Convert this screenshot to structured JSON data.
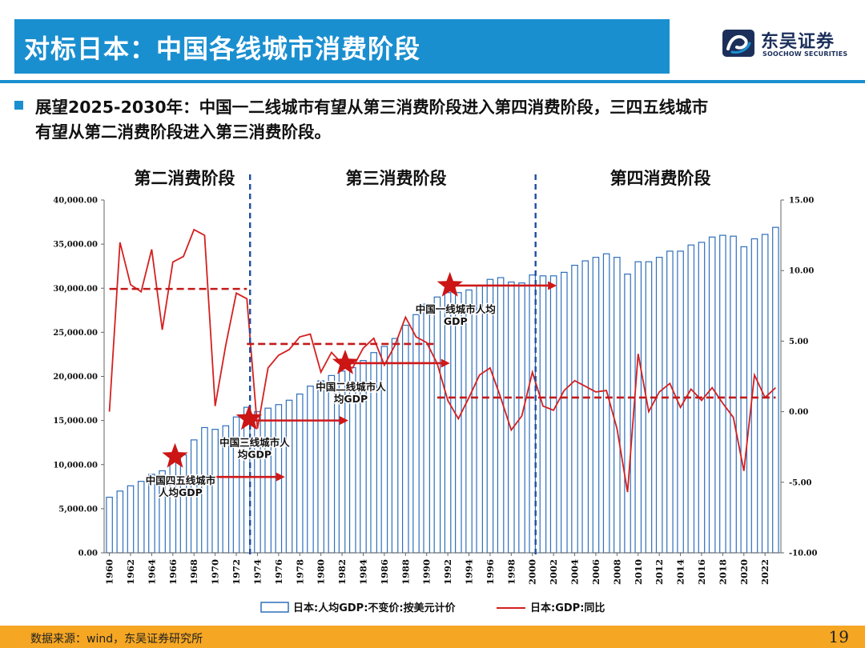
{
  "slide": {
    "title": "对标日本：中国各线城市消费阶段",
    "bullet_line1": "展望2025-2030年：中国一二线城市有望从第三消费阶段进入第四消费阶段，三四五线城市",
    "bullet_line2": "有望从第二消费阶段进入第三消费阶段。",
    "source": "数据来源：wind，东吴证券研究所",
    "page_number": "19",
    "logo": {
      "name_cn": "东吴证券",
      "name_en": "SOOCHOW SECURITIES"
    },
    "colors": {
      "brand_blue": "#1a8fd0",
      "footer_orange": "#f5a623",
      "logo_navy": "#1b2f5a",
      "bar_blue": "#2e6fba",
      "line_red": "#d42020",
      "phase_divider": "#1f4fa0"
    }
  },
  "chart_data": {
    "type": "bar",
    "categories": [
      1960,
      1961,
      1962,
      1963,
      1964,
      1965,
      1966,
      1967,
      1968,
      1969,
      1970,
      1971,
      1972,
      1973,
      1974,
      1975,
      1976,
      1977,
      1978,
      1979,
      1980,
      1981,
      1982,
      1983,
      1984,
      1985,
      1986,
      1987,
      1988,
      1989,
      1990,
      1991,
      1992,
      1993,
      1994,
      1995,
      1996,
      1997,
      1998,
      1999,
      2000,
      2001,
      2002,
      2003,
      2004,
      2005,
      2006,
      2007,
      2008,
      2009,
      2010,
      2011,
      2012,
      2013,
      2014,
      2015,
      2016,
      2017,
      2018,
      2019,
      2020,
      2021,
      2022,
      2023
    ],
    "x_tick_labels": [
      "1960",
      "1962",
      "1964",
      "1966",
      "1968",
      "1970",
      "1972",
      "1974",
      "1976",
      "1978",
      "1980",
      "1982",
      "1984",
      "1986",
      "1988",
      "1990",
      "1992",
      "1994",
      "1996",
      "1998",
      "2000",
      "2002",
      "2004",
      "2006",
      "2008",
      "2010",
      "2012",
      "2014",
      "2016",
      "2018",
      "2020",
      "2022"
    ],
    "series": [
      {
        "name": "日本:人均GDP:不变价:按美元计价",
        "type": "bar",
        "axis": "left",
        "values": [
          6300,
          7000,
          7600,
          8100,
          8900,
          9300,
          10300,
          11100,
          12800,
          14200,
          14000,
          14400,
          15400,
          16500,
          16000,
          16400,
          16800,
          17300,
          18000,
          18900,
          19500,
          20100,
          20600,
          21000,
          21800,
          22700,
          23400,
          24300,
          25800,
          27000,
          28200,
          29000,
          29500,
          29500,
          29800,
          30300,
          31000,
          31200,
          30700,
          30600,
          31500,
          31400,
          31400,
          31800,
          32600,
          33100,
          33500,
          33900,
          33500,
          31600,
          33000,
          33000,
          33500,
          34200,
          34200,
          34900,
          35200,
          35800,
          36000,
          35900,
          34700,
          35600,
          36100,
          36900
        ]
      },
      {
        "name": "日本:GDP:同比",
        "type": "line",
        "axis": "right",
        "values": [
          0,
          12,
          9,
          8.5,
          11.5,
          5.8,
          10.6,
          11,
          12.9,
          12.5,
          0.4,
          4.7,
          8.4,
          8,
          -1.2,
          3.1,
          4,
          4.4,
          5.3,
          5.5,
          2.8,
          4.2,
          3.4,
          3.1,
          4.5,
          5.2,
          3.3,
          4.7,
          6.7,
          5.3,
          4.9,
          3.4,
          0.8,
          -0.5,
          1,
          2.6,
          3.1,
          1,
          -1.3,
          -0.3,
          2.8,
          0.4,
          0.1,
          1.5,
          2.2,
          1.8,
          1.4,
          1.5,
          -1.2,
          -5.7,
          4.1,
          0,
          1.4,
          2,
          0.3,
          1.6,
          0.8,
          1.7,
          0.6,
          -0.4,
          -4.2,
          2.6,
          1,
          1.7
        ]
      }
    ],
    "ylim_left": [
      0,
      40000
    ],
    "ylim_right": [
      -10,
      15
    ],
    "y_left_ticks": [
      "0.00",
      "5,000.00",
      "10,000.00",
      "15,000.00",
      "20,000.00",
      "25,000.00",
      "30,000.00",
      "35,000.00",
      "40,000.00"
    ],
    "y_right_ticks": [
      "-10.00",
      "-5.00",
      "0.00",
      "5.00",
      "10.00",
      "15.00"
    ],
    "phases": [
      {
        "label": "第二消费阶段",
        "from": 1960,
        "to": 1973
      },
      {
        "label": "第三消费阶段",
        "from": 1973,
        "to": 2000
      },
      {
        "label": "第四消费阶段",
        "from": 2000,
        "to": 2023
      }
    ],
    "phase_dividers": [
      1973,
      2000
    ],
    "phase_averages": [
      {
        "from": 1960,
        "to": 1973,
        "value": 8.7
      },
      {
        "from": 1973,
        "to": 1991,
        "value": 4.8
      },
      {
        "from": 1991,
        "to": 2023,
        "value": 1.0
      }
    ],
    "annotations": [
      {
        "label_line1": "中国四五线城市",
        "label_line2": "人均GDP",
        "star_x": 1966.2,
        "star_y": 10900,
        "arrow_from": 1965.8,
        "arrow_to": 1976.6,
        "arrow_y": 8600
      },
      {
        "label_line1": "中国三线城市人",
        "label_line2": "均GDP",
        "star_x": 1973.2,
        "star_y": 15200,
        "arrow_from": 1973.2,
        "arrow_to": 1982.6,
        "arrow_y": 15000
      },
      {
        "label_line1": "中国二线城市人",
        "label_line2": "均GDP",
        "star_x": 1982.3,
        "star_y": 21500,
        "arrow_from": 1982.3,
        "arrow_to": 1992.2,
        "arrow_y": 21500
      },
      {
        "label_line1": "中国一线城市人均",
        "label_line2": "GDP",
        "star_x": 1992.2,
        "star_y": 30300,
        "arrow_from": 1992.2,
        "arrow_to": 2002.3,
        "arrow_y": 30300
      }
    ],
    "legend": {
      "bar_label": "日本:人均GDP:不变价:按美元计价",
      "line_label": "日本:GDP:同比",
      "position": "bottom"
    },
    "grid": false
  }
}
